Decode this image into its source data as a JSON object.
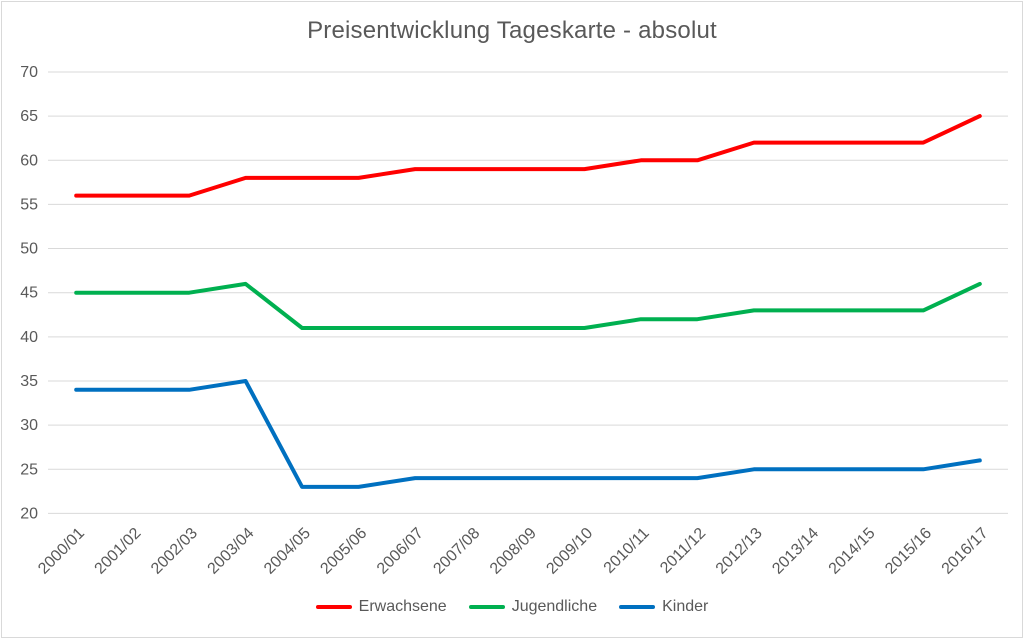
{
  "chart_data": {
    "type": "line",
    "title": "Preisentwicklung Tageskarte - absolut",
    "categories": [
      "2000/01",
      "2001/02",
      "2002/03",
      "2003/04",
      "2004/05",
      "2005/06",
      "2006/07",
      "2007/08",
      "2008/09",
      "2009/10",
      "2010/11",
      "2011/12",
      "2012/13",
      "2013/14",
      "2014/15",
      "2015/16",
      "2016/17"
    ],
    "series": [
      {
        "name": "Erwachsene",
        "color": "#FF0000",
        "values": [
          56,
          56,
          56,
          58,
          58,
          58,
          59,
          59,
          59,
          59,
          60,
          60,
          62,
          62,
          62,
          62,
          65
        ]
      },
      {
        "name": "Jugendliche",
        "color": "#00B050",
        "values": [
          45,
          45,
          45,
          46,
          41,
          41,
          41,
          41,
          41,
          41,
          42,
          42,
          43,
          43,
          43,
          43,
          46
        ]
      },
      {
        "name": "Kinder",
        "color": "#0070C0",
        "values": [
          34,
          34,
          34,
          35,
          23,
          23,
          24,
          24,
          24,
          24,
          24,
          24,
          25,
          25,
          25,
          25,
          26
        ]
      }
    ],
    "xlabel": "",
    "ylabel": "",
    "ylim": [
      20,
      70
    ],
    "y_ticks": [
      20,
      25,
      30,
      35,
      40,
      45,
      50,
      55,
      60,
      65,
      70
    ],
    "grid": true,
    "legend_position": "bottom"
  },
  "style": {
    "grid_color": "#D9D9D9",
    "axis_text_color": "#595959",
    "title_color": "#595959",
    "border_color": "#D9D9D9",
    "background": "#FFFFFF",
    "line_width": 4,
    "tick_font_size": 15
  }
}
